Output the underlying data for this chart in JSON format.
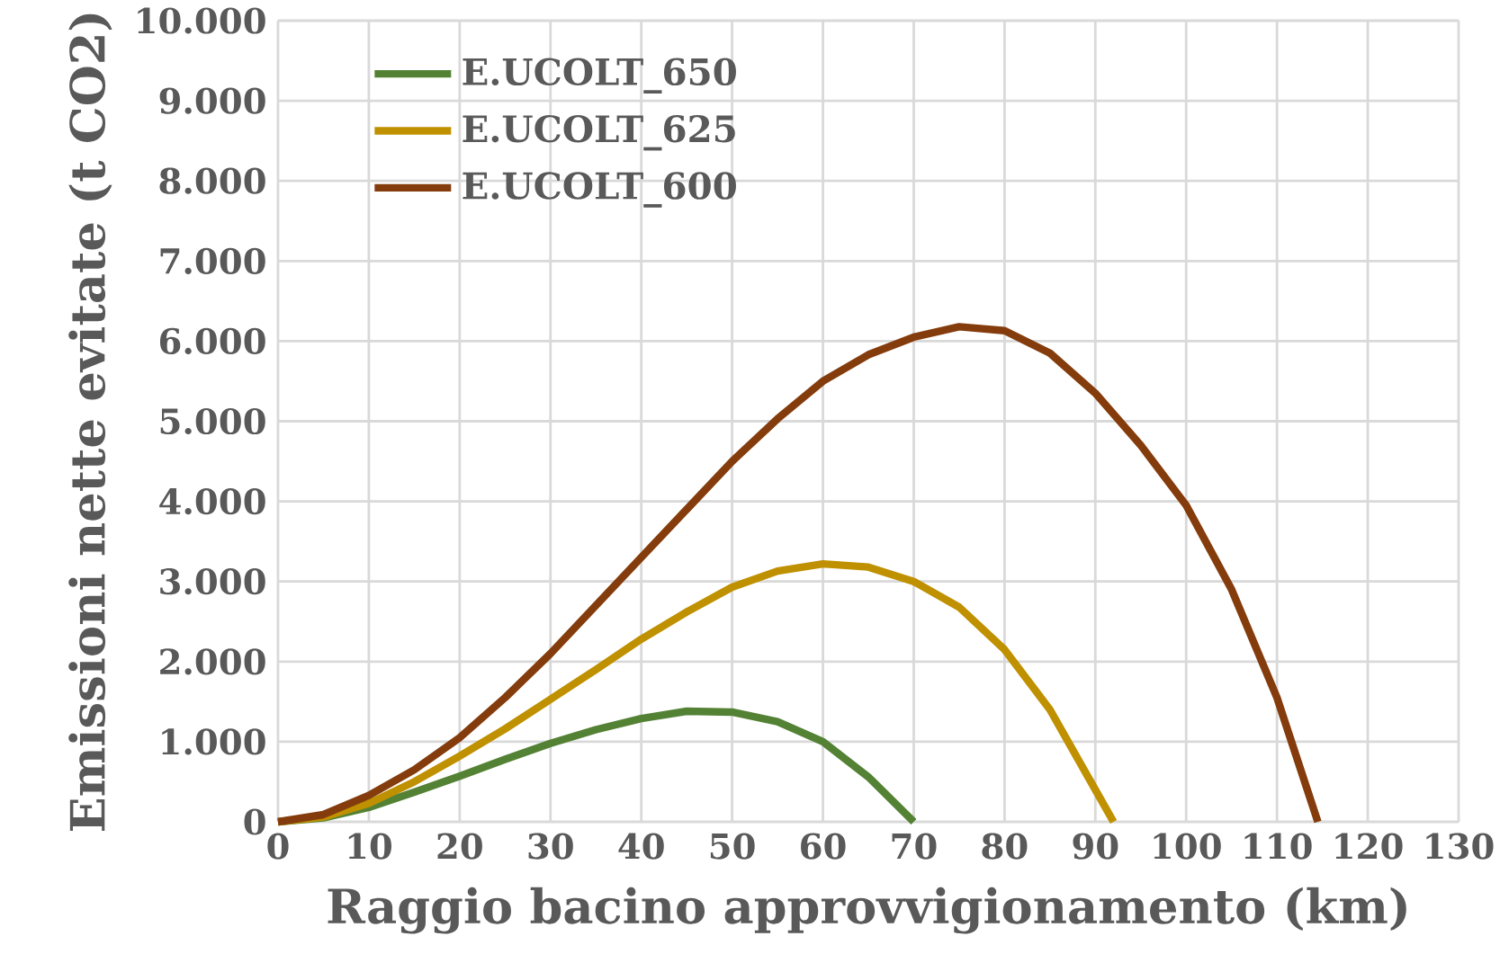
{
  "chart_data": {
    "type": "line",
    "xlabel": "Raggio bacino approvvigionamento (km)",
    "ylabel": "Emissioni nette evitate (t CO2)",
    "xlim": [
      0,
      130
    ],
    "xticks": [
      0,
      10,
      20,
      30,
      40,
      50,
      60,
      70,
      80,
      90,
      100,
      110,
      120,
      130
    ],
    "ylim": [
      0,
      10000
    ],
    "yticks": [
      0,
      {
        "value": 1000,
        "label": "1.000"
      },
      {
        "value": 2000,
        "label": "2.000"
      },
      {
        "value": 3000,
        "label": "3.000"
      },
      {
        "value": 4000,
        "label": "4.000"
      },
      {
        "value": 5000,
        "label": "5.000"
      },
      {
        "value": 6000,
        "label": "6.000"
      },
      {
        "value": 7000,
        "label": "7.000"
      },
      {
        "value": 8000,
        "label": "8.000"
      },
      {
        "value": 9000,
        "label": "9.000"
      },
      {
        "value": 10000,
        "label": "10.000"
      }
    ],
    "grid": true,
    "legend": "top left",
    "marker": "none",
    "line_style": "solid",
    "series": [
      {
        "name": "E.UCOLT_650",
        "color": "#548235",
        "x": [
          0,
          5,
          10,
          15,
          20,
          25,
          30,
          35,
          40,
          45,
          50,
          55,
          60,
          65,
          70
        ],
        "values": [
          0,
          50,
          180,
          370,
          570,
          780,
          980,
          1150,
          1290,
          1380,
          1370,
          1250,
          1000,
          560,
          0
        ]
      },
      {
        "name": "E.UCOLT_625",
        "color": "#bf9000",
        "x": [
          0,
          5,
          10,
          15,
          20,
          25,
          30,
          35,
          40,
          45,
          50,
          55,
          60,
          65,
          70,
          75,
          80,
          85,
          90,
          92
        ],
        "values": [
          0,
          60,
          230,
          500,
          820,
          1160,
          1530,
          1900,
          2280,
          2620,
          2930,
          3130,
          3220,
          3180,
          3000,
          2680,
          2150,
          1400,
          400,
          0
        ]
      },
      {
        "name": "E.UCOLT_600",
        "color": "#843c0c",
        "x": [
          0,
          5,
          10,
          15,
          20,
          25,
          30,
          35,
          40,
          45,
          50,
          55,
          60,
          65,
          70,
          75,
          80,
          85,
          90,
          95,
          100,
          105,
          110,
          114.5
        ],
        "values": [
          0,
          90,
          330,
          650,
          1050,
          1550,
          2100,
          2700,
          3300,
          3900,
          4500,
          5030,
          5500,
          5830,
          6050,
          6180,
          6130,
          5850,
          5350,
          4700,
          3950,
          2900,
          1550,
          0
        ]
      }
    ]
  }
}
